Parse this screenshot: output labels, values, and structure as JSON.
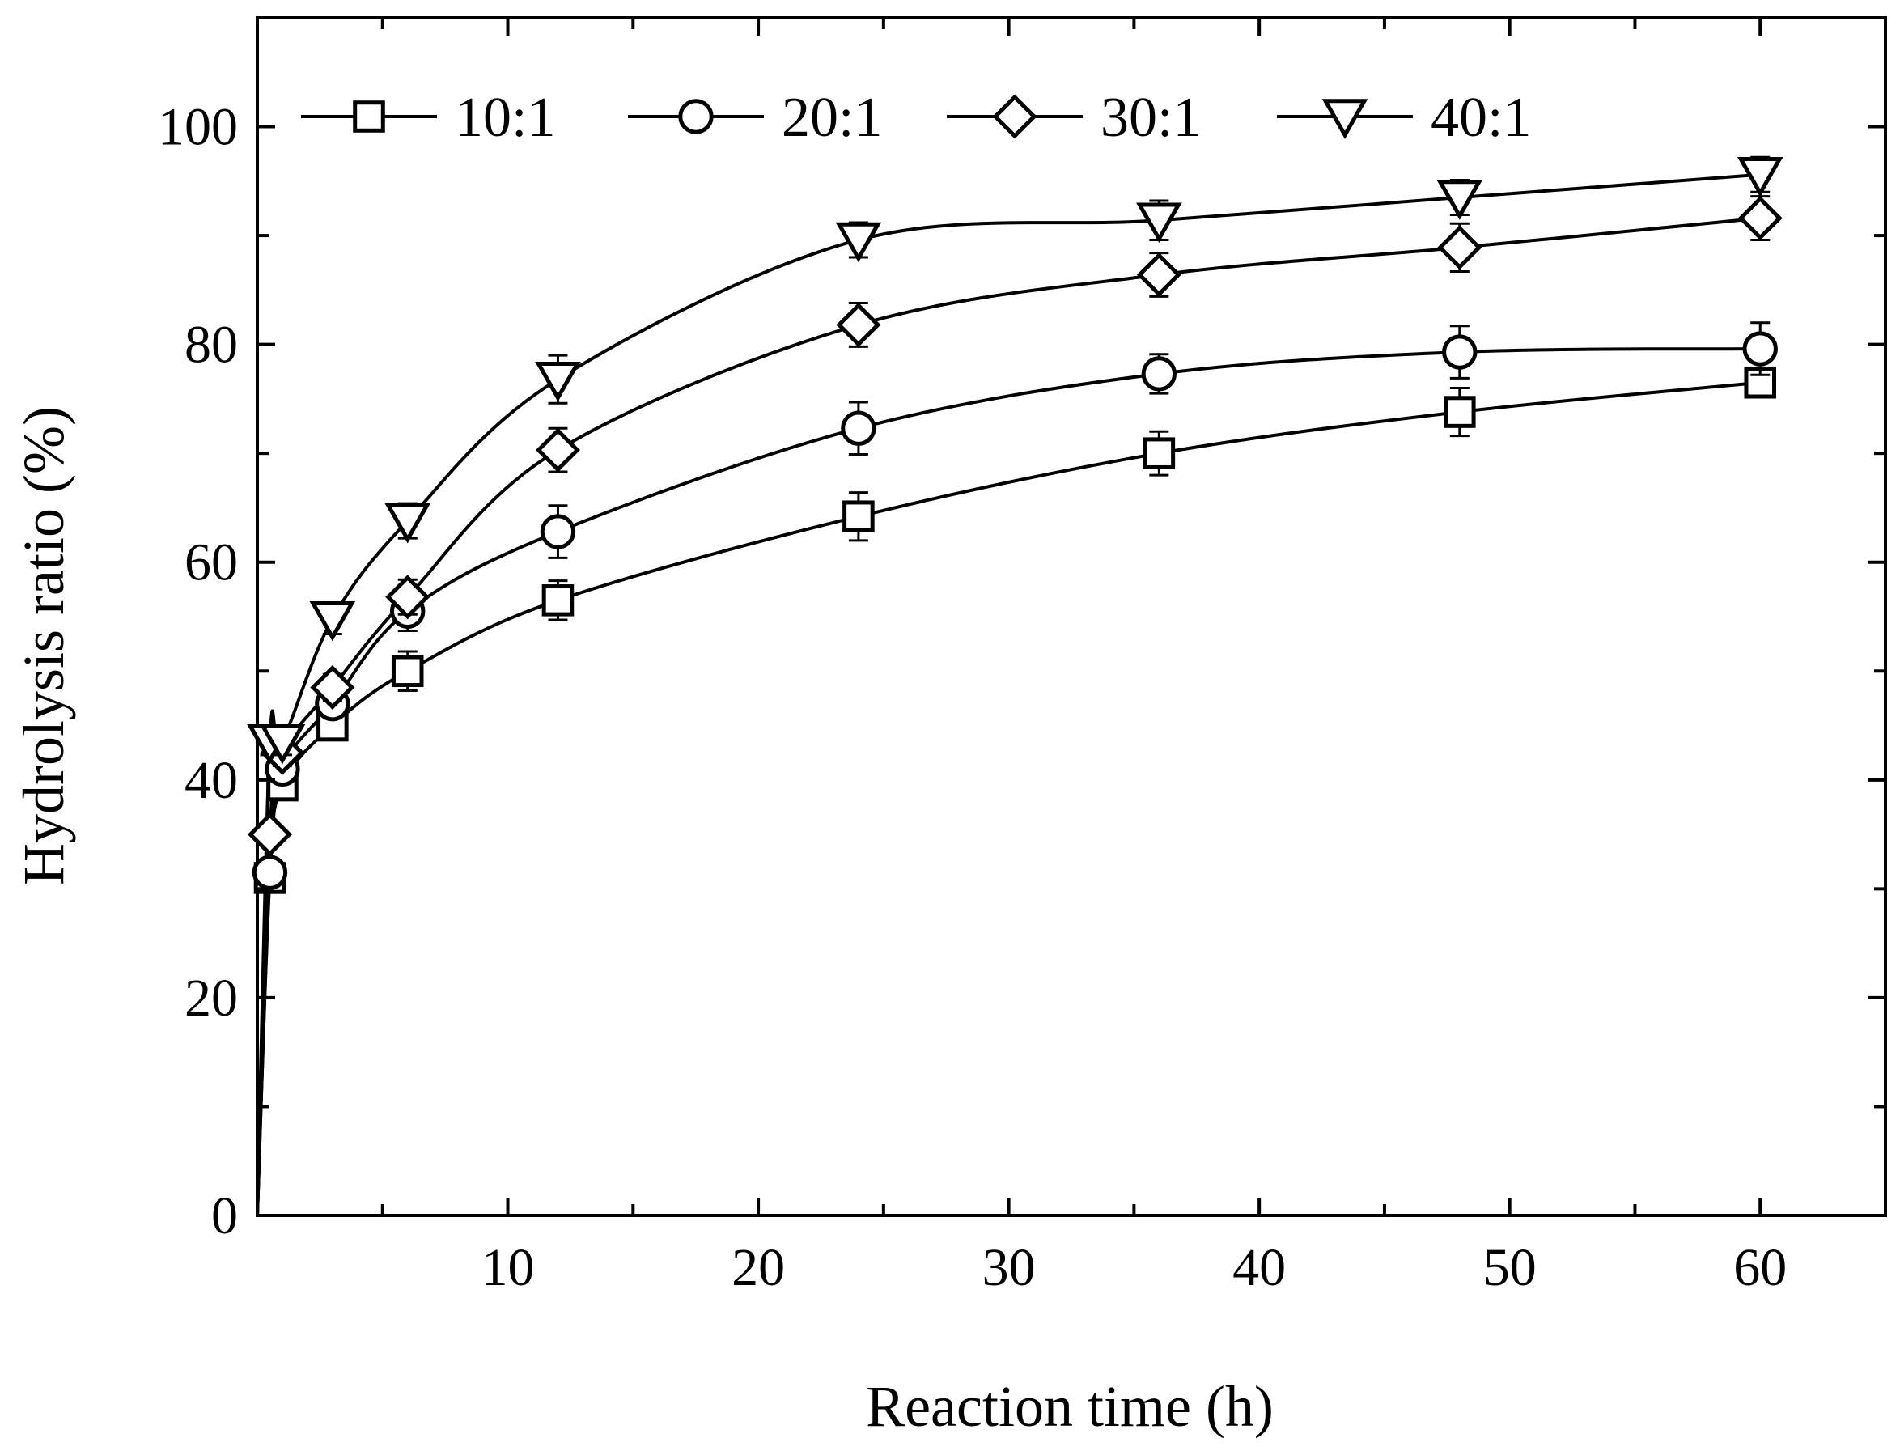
{
  "chart_data": {
    "type": "line",
    "title": "",
    "xlabel": "Reaction time (h)",
    "ylabel": "Hydrolysis ratio (%)",
    "xlim": [
      0,
      65
    ],
    "ylim": [
      0,
      110
    ],
    "x_ticks": [
      10,
      20,
      30,
      40,
      50,
      60
    ],
    "y_ticks": [
      0,
      20,
      40,
      60,
      80,
      100
    ],
    "grid": false,
    "legend_position": "top",
    "x": [
      0,
      0.5,
      1,
      3,
      6,
      12,
      24,
      36,
      48,
      60
    ],
    "series": [
      {
        "name": "10:1",
        "marker": "square",
        "values": [
          0,
          31,
          39.5,
          45,
          50,
          56.5,
          64.2,
          70,
          73.8,
          76.5
        ],
        "errors": [
          0,
          1,
          1.2,
          1.2,
          1.8,
          1.8,
          2.2,
          2,
          2.2,
          1.2
        ]
      },
      {
        "name": "20:1",
        "marker": "circle",
        "values": [
          0,
          31.5,
          41,
          47,
          55.5,
          62.8,
          72.3,
          77.3,
          79.3,
          79.6
        ],
        "errors": [
          0,
          1,
          1.2,
          1.2,
          1.8,
          2.4,
          2.4,
          1.8,
          2.4,
          2.4
        ]
      },
      {
        "name": "30:1",
        "marker": "diamond",
        "values": [
          0,
          35,
          42.5,
          48.5,
          56.8,
          70.3,
          81.8,
          86.4,
          88.9,
          91.6
        ],
        "errors": [
          0,
          1,
          1.2,
          1.2,
          1.6,
          2,
          2,
          2,
          2.2,
          2
        ]
      },
      {
        "name": "40:1",
        "marker": "triangle-down",
        "values": [
          0,
          43.5,
          43.5,
          54.8,
          63.8,
          76.8,
          89.6,
          91.4,
          93.5,
          95.6
        ],
        "errors": [
          0,
          1.2,
          1.2,
          1.4,
          1.6,
          2.2,
          1.6,
          1.8,
          1.6,
          1.6
        ]
      }
    ]
  }
}
